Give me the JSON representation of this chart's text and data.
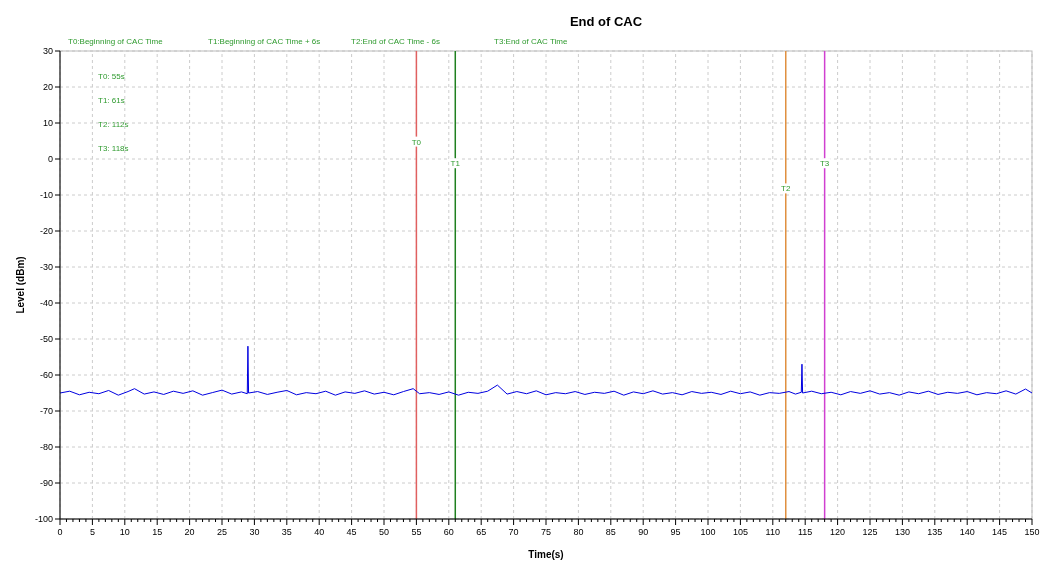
{
  "chart_data": {
    "type": "line",
    "title": "End of CAC",
    "xlabel": "Time(s)",
    "ylabel": "Level (dBm)",
    "annotations": [
      "T0:Beginning of CAC Time",
      "T1:Beginning of CAC Time + 6s",
      "T2:End of CAC Time - 6s",
      "T3:End of CAC Time",
      "T0: 55s",
      "T1: 61s",
      "T2: 112s",
      "T3: 118s"
    ],
    "series": [
      {
        "color": "#0000e0",
        "x": [
          0,
          1.5,
          3,
          4.5,
          6,
          7.5,
          9,
          10.5,
          11.5,
          13,
          14.5,
          16,
          17.5,
          19,
          20.5,
          22,
          23.5,
          25,
          26.5,
          28,
          28.9,
          29,
          29.1,
          30.5,
          32,
          33.5,
          35,
          36.5,
          38,
          39.5,
          41,
          42.5,
          44,
          45.5,
          47,
          48.5,
          50,
          51.5,
          53,
          54.5,
          55.5,
          57,
          58.5,
          60,
          61.5,
          63,
          64.5,
          66,
          67.5,
          69,
          70.5,
          72,
          73.5,
          75,
          76.5,
          78,
          79.5,
          81,
          82.5,
          84,
          85.5,
          87,
          88.5,
          90,
          91.5,
          93,
          94.5,
          96,
          97.5,
          99,
          100.5,
          102,
          103.5,
          105,
          106.5,
          108,
          109.5,
          111,
          112.5,
          113.5,
          114.4,
          114.5,
          114.6,
          116,
          117.5,
          119,
          120.5,
          122,
          123.5,
          125,
          126.5,
          128,
          129.5,
          131,
          132.5,
          134,
          135.5,
          137,
          138.5,
          140,
          141.5,
          143,
          144.5,
          146,
          147.5,
          149,
          150
        ],
        "values": [
          -65,
          -64.5,
          -65.5,
          -64.8,
          -65.2,
          -64.3,
          -65.6,
          -64.6,
          -63.8,
          -65.3,
          -64.7,
          -65.4,
          -64.5,
          -65.1,
          -64.4,
          -65.6,
          -64.9,
          -64.2,
          -65.3,
          -64.7,
          -65.2,
          -52,
          -65,
          -64.6,
          -65.4,
          -64.8,
          -64.3,
          -65.5,
          -64.9,
          -65.2,
          -64.5,
          -65.6,
          -64.7,
          -65.1,
          -64.4,
          -65.3,
          -64.8,
          -65.5,
          -64.6,
          -63.8,
          -65.2,
          -64.9,
          -65.4,
          -64.7,
          -65.6,
          -64.8,
          -65.1,
          -64.5,
          -62.8,
          -65.3,
          -64.6,
          -65.2,
          -64.4,
          -65.5,
          -64.9,
          -65.2,
          -64.6,
          -65.4,
          -64.8,
          -65.1,
          -64.5,
          -65.6,
          -64.7,
          -65.2,
          -64.4,
          -65.3,
          -64.9,
          -65.5,
          -64.6,
          -65.1,
          -64.8,
          -65.4,
          -64.5,
          -65.2,
          -64.7,
          -65.6,
          -64.9,
          -65.1,
          -64.6,
          -65.3,
          -64.8,
          -57,
          -65,
          -64.5,
          -65.2,
          -64.8,
          -65.5,
          -64.6,
          -65.1,
          -64.4,
          -65.3,
          -64.9,
          -65.6,
          -64.7,
          -65.2,
          -64.5,
          -65.4,
          -64.8,
          -65.1,
          -64.6,
          -65.5,
          -64.9,
          -65.2,
          -64.4,
          -65.3,
          -63.9,
          -65
        ]
      }
    ],
    "xlim": [
      0,
      150
    ],
    "xticks": [
      0,
      5,
      10,
      15,
      20,
      25,
      30,
      35,
      40,
      45,
      50,
      55,
      60,
      65,
      70,
      75,
      80,
      85,
      90,
      95,
      100,
      105,
      110,
      115,
      120,
      125,
      130,
      135,
      140,
      145,
      150
    ],
    "ylim": [
      -100,
      30
    ],
    "yticks": [
      -100,
      -90,
      -80,
      -70,
      -60,
      -50,
      -40,
      -30,
      -20,
      -10,
      0,
      10,
      20,
      30
    ],
    "grid": true,
    "line_style": "solid",
    "marker": "none",
    "ref_lines": [
      {
        "axis": "x",
        "value": 55,
        "label": "T0",
        "color": "#e06060"
      },
      {
        "axis": "x",
        "value": 61,
        "label": "T1",
        "color": "#208020"
      },
      {
        "axis": "x",
        "value": 112,
        "label": "T2",
        "color": "#e09040"
      },
      {
        "axis": "x",
        "value": 118,
        "label": "T3",
        "color": "#d040d0"
      }
    ]
  }
}
